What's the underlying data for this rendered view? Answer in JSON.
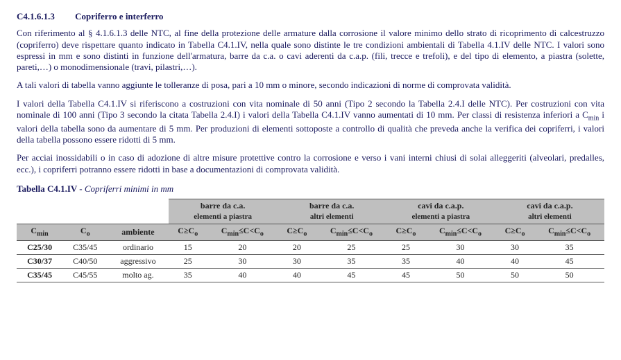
{
  "section": {
    "number": "C4.1.6.1.3",
    "title": "Copriferro e interferro"
  },
  "paras": {
    "p1_a": "Con riferimento al § 4.1.6.1.3 delle NTC, al fine della protezione delle armature dalla corrosione il valore minimo dello strato di ricoprimento di calcestruzzo (copriferro) deve rispettare quanto indicato in Tabella C4.1.IV, nella quale sono distinte le tre condizioni ambientali di Tabella 4.1.IV delle NTC. I valori sono espressi in mm e sono distinti in funzione dell'armatura, barre da c.a. o cavi aderenti da c.a.p. (fili, trecce e trefoli), e del tipo di elemento, a piastra (solette, pareti,…) o monodimensionale (travi, pilastri,…).",
    "p2": "A tali valori di tabella vanno aggiunte le tolleranze di posa, pari a 10 mm o minore, secondo indicazioni di norme di comprovata validità.",
    "p3_a": "I valori della Tabella C4.1.IV si riferiscono a costruzioni con vita nominale di 50 anni (Tipo 2 secondo la Tabella 2.4.I delle NTC). Per costruzioni con vita nominale di 100 anni (Tipo 3 secondo la citata Tabella 2.4.I) i valori della Tabella C4.1.IV vanno aumentati di 10 mm. Per classi di resistenza inferiori a C",
    "p3_b": " i valori della tabella sono da aumentare di 5 mm. Per produzioni di elementi sottoposte a controllo di qualità che preveda anche la verifica dei copriferri, i valori della tabella possono essere ridotti di 5 mm.",
    "p4": "Per acciai inossidabili o in caso di adozione di altre misure protettive contro la corrosione e verso i vani interni chiusi di solai alleggeriti (alveolari, predalles, ecc.), i copriferri potranno essere ridotti in base a documentazioni di comprovata validità.",
    "cmin_sub": "min"
  },
  "table": {
    "caption_bold": "Tabella C4.1.IV - ",
    "caption_ital": "Copriferri minimi in mm",
    "group_headers": [
      "barre da c.a.",
      "barre da c.a.",
      "cavi da c.a.p.",
      "cavi da c.a.p."
    ],
    "group_subs": [
      "elementi a piastra",
      "altri elementi",
      "elementi a piastra",
      "altri elementi"
    ],
    "col_left": [
      "C",
      "C",
      "ambiente"
    ],
    "col_left_sub": [
      "min",
      "o",
      ""
    ],
    "pair_a": "C≥C",
    "pair_a_sub": "o",
    "pair_b_pre": "C",
    "pair_b_sub1": "min",
    "pair_b_mid": "≤C<C",
    "pair_b_sub2": "o",
    "rows": [
      {
        "cmin": "C25/30",
        "co": "C35/45",
        "amb": "ordinario",
        "v": [
          "15",
          "20",
          "20",
          "25",
          "25",
          "30",
          "30",
          "35"
        ]
      },
      {
        "cmin": "C30/37",
        "co": "C40/50",
        "amb": "aggressivo",
        "v": [
          "25",
          "30",
          "30",
          "35",
          "35",
          "40",
          "40",
          "45"
        ]
      },
      {
        "cmin": "C35/45",
        "co": "C45/55",
        "amb": "molto ag.",
        "v": [
          "35",
          "40",
          "40",
          "45",
          "45",
          "50",
          "50",
          "50"
        ]
      }
    ]
  }
}
